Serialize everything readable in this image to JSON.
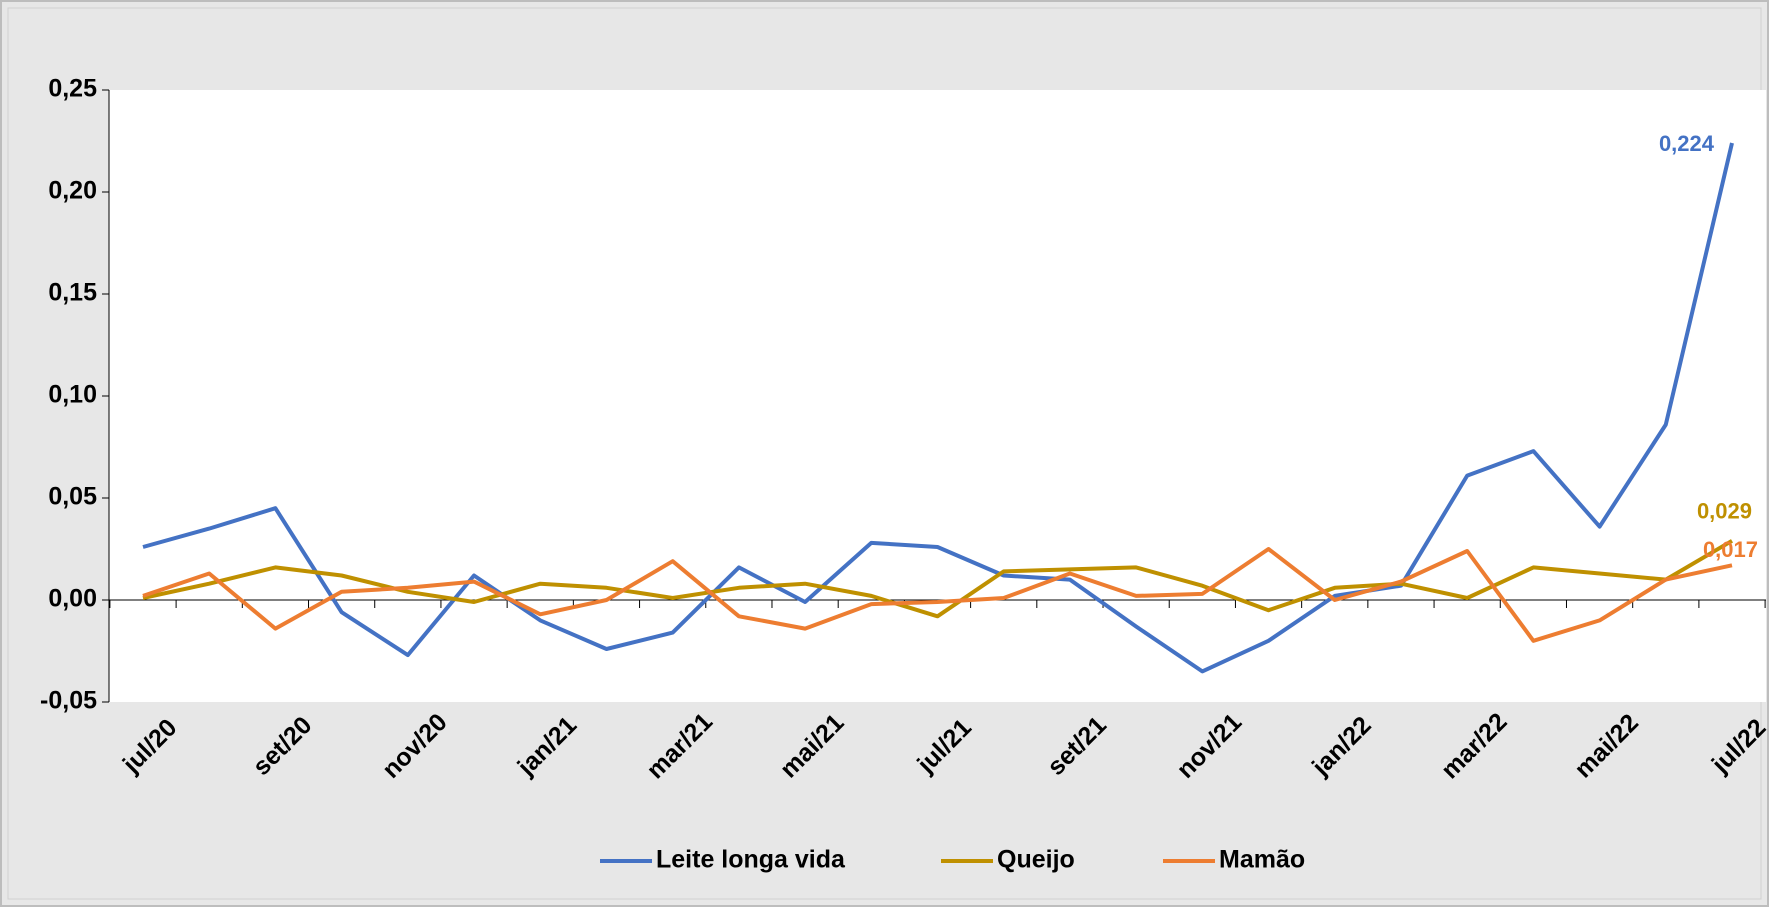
{
  "chart_data": {
    "type": "line",
    "categories": [
      "jul/20",
      null,
      "set/20",
      null,
      "nov/20",
      null,
      "jan/21",
      null,
      "mar/21",
      null,
      "mai/21",
      null,
      "jul/21",
      null,
      "set/21",
      null,
      "nov/21",
      null,
      "jan/22",
      null,
      "mar/22",
      null,
      "mai/22",
      null,
      "jul/22"
    ],
    "series": [
      {
        "name": "Leite longa vida",
        "color": "#4472c4",
        "values": [
          0.026,
          0.035,
          0.045,
          -0.006,
          -0.027,
          0.012,
          -0.01,
          -0.024,
          -0.016,
          0.016,
          -0.001,
          0.028,
          0.026,
          0.012,
          0.01,
          -0.013,
          -0.035,
          -0.02,
          0.002,
          0.007,
          0.061,
          0.073,
          0.036,
          0.086,
          0.224
        ],
        "value_labels": [
          null,
          null,
          null,
          null,
          null,
          null,
          null,
          null,
          null,
          null,
          null,
          null,
          null,
          null,
          null,
          null,
          null,
          null,
          null,
          null,
          null,
          null,
          null,
          null,
          "0,224"
        ]
      },
      {
        "name": "Queijo",
        "color": "#bf9000",
        "values": [
          0.001,
          0.008,
          0.016,
          0.012,
          0.004,
          -0.001,
          0.008,
          0.006,
          0.001,
          0.006,
          0.008,
          0.002,
          -0.008,
          0.014,
          0.015,
          0.016,
          0.007,
          -0.005,
          0.006,
          0.008,
          0.001,
          0.016,
          0.013,
          0.01,
          0.029
        ],
        "value_labels": [
          null,
          null,
          null,
          null,
          null,
          null,
          null,
          null,
          null,
          null,
          null,
          null,
          null,
          null,
          null,
          null,
          null,
          null,
          null,
          null,
          null,
          null,
          null,
          null,
          "0,029"
        ]
      },
      {
        "name": "Mamão",
        "color": "#ed7d31",
        "values": [
          0.002,
          0.013,
          -0.014,
          0.004,
          0.006,
          0.009,
          -0.007,
          0.0,
          0.019,
          -0.008,
          -0.014,
          -0.002,
          -0.001,
          0.001,
          0.013,
          0.002,
          0.003,
          0.025,
          0.0,
          0.009,
          0.024,
          -0.02,
          -0.01,
          0.01,
          0.017
        ],
        "value_labels": [
          null,
          null,
          null,
          null,
          null,
          null,
          null,
          null,
          null,
          null,
          null,
          null,
          null,
          null,
          null,
          null,
          null,
          null,
          null,
          null,
          null,
          null,
          null,
          null,
          "0,017"
        ]
      }
    ],
    "ylim": [
      -0.05,
      0.25
    ],
    "yticks": [
      {
        "value": -0.05,
        "label": "-0,05"
      },
      {
        "value": 0,
        "label": "0,00"
      },
      {
        "value": 0.05,
        "label": "0,05"
      },
      {
        "value": 0.1,
        "label": "0,10"
      },
      {
        "value": 0.15,
        "label": "0,15"
      },
      {
        "value": 0.2,
        "label": "0,20"
      },
      {
        "value": 0.25,
        "label": "0,25"
      }
    ],
    "grid": false,
    "legend": "bottom"
  }
}
